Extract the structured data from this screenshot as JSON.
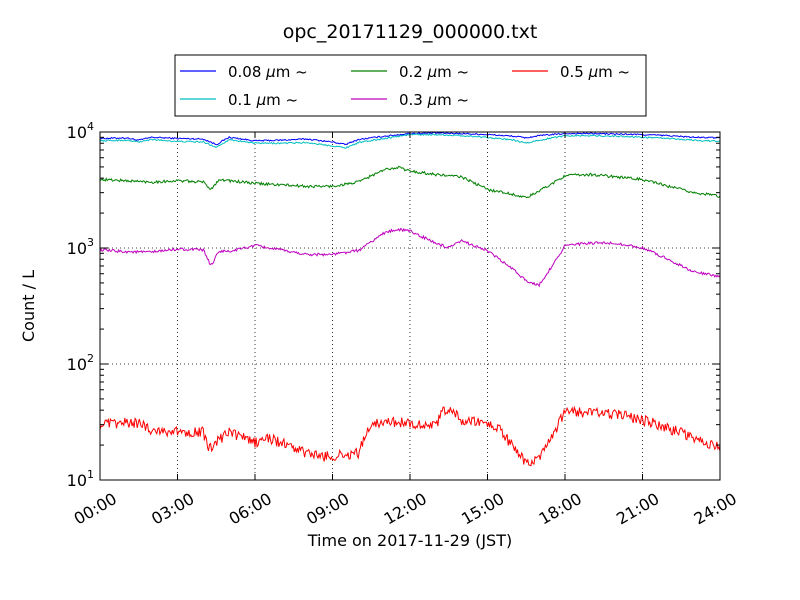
{
  "chart_data": {
    "type": "line",
    "title": "opc_20171129_000000.txt",
    "xlabel": "Time on 2017-11-29 (JST)",
    "ylabel": "Count / L",
    "x_unit": "hours",
    "xlim": [
      0,
      24
    ],
    "ylim": [
      10,
      10000
    ],
    "yscale": "log",
    "grid": true,
    "legend_position": "top",
    "x_ticks": [
      {
        "value": 0,
        "label": "00:00"
      },
      {
        "value": 3,
        "label": "03:00"
      },
      {
        "value": 6,
        "label": "06:00"
      },
      {
        "value": 9,
        "label": "09:00"
      },
      {
        "value": 12,
        "label": "12:00"
      },
      {
        "value": 15,
        "label": "15:00"
      },
      {
        "value": 18,
        "label": "18:00"
      },
      {
        "value": 21,
        "label": "21:00"
      },
      {
        "value": 24,
        "label": "24:00"
      }
    ],
    "y_ticks": [
      {
        "value": 10,
        "base": "10",
        "exp": "1"
      },
      {
        "value": 100,
        "base": "10",
        "exp": "2"
      },
      {
        "value": 1000,
        "base": "10",
        "exp": "3"
      },
      {
        "value": 10000,
        "base": "10",
        "exp": "4"
      }
    ],
    "series": [
      {
        "name_prefix": "0.08",
        "name_unit": "μm",
        "name_suffix": "~",
        "color": "#0000ff",
        "x": [
          0,
          1,
          1.5,
          2,
          3,
          4,
          4.5,
          5,
          6,
          7,
          8,
          9,
          9.5,
          10,
          11,
          12,
          13,
          14,
          15,
          16,
          16.5,
          17,
          18,
          19,
          20,
          21,
          22,
          23,
          24
        ],
        "y": [
          8800,
          8900,
          8500,
          9000,
          8800,
          8700,
          7800,
          9000,
          8400,
          8500,
          8700,
          8200,
          7800,
          8600,
          9200,
          9700,
          9800,
          9700,
          9500,
          9200,
          8900,
          9300,
          9700,
          9700,
          9600,
          9500,
          9300,
          9000,
          8900
        ]
      },
      {
        "name_prefix": "0.1",
        "name_unit": "μm",
        "name_suffix": "~",
        "color": "#00bfbf",
        "x": [
          0,
          1,
          1.5,
          2,
          3,
          4,
          4.5,
          5,
          6,
          7,
          8,
          9,
          9.5,
          10,
          11,
          12,
          13,
          14,
          15,
          16,
          16.5,
          17,
          18,
          19,
          20,
          21,
          22,
          23,
          24
        ],
        "y": [
          8400,
          8500,
          8200,
          8600,
          8300,
          8200,
          7400,
          8600,
          8000,
          8000,
          8100,
          7600,
          7300,
          8100,
          8800,
          9500,
          9500,
          9300,
          9000,
          8500,
          8000,
          8500,
          9300,
          9300,
          9200,
          9000,
          8800,
          8500,
          8300
        ]
      },
      {
        "name_prefix": "0.2",
        "name_unit": "μm",
        "name_suffix": "~",
        "color": "#008000",
        "x": [
          0,
          1,
          2,
          3,
          4,
          4.3,
          4.6,
          5,
          6,
          7,
          8,
          9,
          10,
          10.5,
          11,
          11.5,
          12,
          13,
          14,
          15,
          16,
          16.5,
          17,
          17.5,
          18,
          19,
          20,
          21,
          22,
          23,
          24
        ],
        "y": [
          3900,
          3800,
          3700,
          3800,
          3700,
          3200,
          3900,
          3800,
          3600,
          3500,
          3400,
          3400,
          3700,
          4200,
          4700,
          5000,
          4600,
          4300,
          4100,
          3200,
          2900,
          2700,
          3100,
          3600,
          4200,
          4300,
          4100,
          3900,
          3400,
          3000,
          2800
        ]
      },
      {
        "name_prefix": "0.3",
        "name_unit": "μm",
        "name_suffix": "~",
        "color": "#bf00bf",
        "x": [
          0,
          1,
          2,
          3,
          4,
          4.3,
          4.6,
          5,
          6,
          7,
          8,
          9,
          10,
          11,
          11.5,
          12,
          13,
          13.5,
          14,
          15,
          16,
          16.5,
          17,
          17.5,
          18,
          19,
          20,
          21,
          22,
          23,
          24
        ],
        "y": [
          960,
          930,
          920,
          980,
          960,
          700,
          940,
          930,
          1050,
          960,
          880,
          880,
          950,
          1350,
          1450,
          1400,
          1100,
          1000,
          1150,
          950,
          650,
          520,
          480,
          700,
          1050,
          1100,
          1100,
          1000,
          800,
          620,
          570
        ]
      },
      {
        "name_prefix": "0.5",
        "name_unit": "μm",
        "name_suffix": "~",
        "color": "#ff0000",
        "x": [
          0,
          1,
          1.5,
          2,
          3,
          4,
          4.2,
          4.5,
          5,
          6,
          6.5,
          7,
          8,
          8.5,
          9,
          10,
          10.5,
          11,
          12,
          13,
          13.3,
          13.6,
          14,
          15,
          15.5,
          16,
          16.5,
          17,
          17.5,
          18,
          19,
          20,
          21,
          22,
          23,
          24
        ],
        "y": [
          30,
          31,
          31,
          27,
          26,
          26,
          18,
          21,
          26,
          21,
          23,
          21,
          17,
          16,
          16,
          17,
          31,
          32,
          31,
          29,
          40,
          41,
          32,
          31,
          27,
          19,
          14,
          15,
          23,
          39,
          38,
          37,
          33,
          28,
          23,
          19
        ]
      }
    ]
  }
}
